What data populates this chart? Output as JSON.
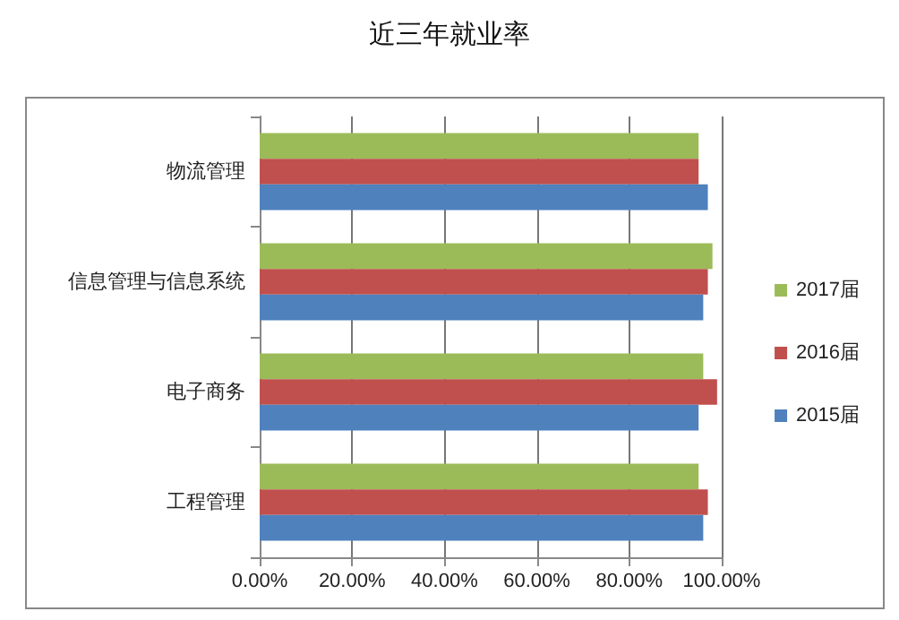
{
  "chart_data": {
    "type": "bar",
    "title": "近三年就业率",
    "orientation": "horizontal",
    "categories": [
      "物流管理",
      "信息管理与信息系统",
      "电子商务",
      "工程管理"
    ],
    "series": [
      {
        "name": "2017届",
        "color": "#9bbb59",
        "values": [
          95,
          98,
          96,
          95
        ]
      },
      {
        "name": "2016届",
        "color": "#c0504d",
        "values": [
          95,
          97,
          99,
          97
        ]
      },
      {
        "name": "2015届",
        "color": "#4f81bd",
        "values": [
          97,
          96,
          95,
          96
        ]
      }
    ],
    "xlim": [
      0,
      100
    ],
    "xticks": [
      {
        "value": 0,
        "label": "0.00%"
      },
      {
        "value": 20,
        "label": "20.00%"
      },
      {
        "value": 40,
        "label": "40.00%"
      },
      {
        "value": 60,
        "label": "60.00%"
      },
      {
        "value": 80,
        "label": "80.00%"
      },
      {
        "value": 100,
        "label": "100.00%"
      }
    ],
    "grid": "x",
    "legend": "right"
  }
}
